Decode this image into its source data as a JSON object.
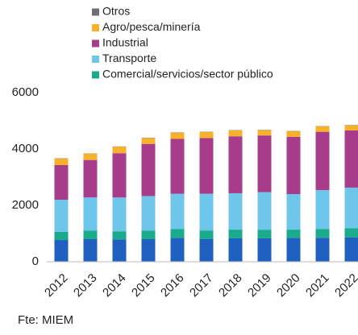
{
  "chart_data": {
    "type": "stacked_bar",
    "categories": [
      "2012",
      "2013",
      "2014",
      "2015",
      "2016",
      "2017",
      "2018",
      "2019",
      "2020",
      "2021",
      "2022"
    ],
    "series": [
      {
        "name": null,
        "color": "#1f5fbf",
        "values": [
          770,
          800,
          790,
          800,
          850,
          810,
          830,
          830,
          850,
          850,
          860
        ]
      },
      {
        "name": "Comercial/servicios/sector público",
        "color": "#1aaa8c",
        "values": [
          290,
          300,
          290,
          300,
          310,
          300,
          310,
          300,
          290,
          310,
          330
        ]
      },
      {
        "name": "Transporte",
        "color": "#6ec6ea",
        "values": [
          1140,
          1180,
          1200,
          1230,
          1250,
          1300,
          1290,
          1340,
          1260,
          1380,
          1440
        ]
      },
      {
        "name": "Industrial",
        "color": "#a63c8a",
        "values": [
          1230,
          1330,
          1570,
          1850,
          1950,
          1980,
          2020,
          2010,
          2030,
          2070,
          2030
        ]
      },
      {
        "name": "Agro/pesca/minería",
        "color": "#f7b22a",
        "values": [
          230,
          220,
          230,
          210,
          220,
          210,
          210,
          190,
          200,
          190,
          180
        ]
      },
      {
        "name": "Otros",
        "color": "#6b6f76",
        "values": [
          10,
          10,
          10,
          10,
          10,
          10,
          10,
          10,
          10,
          10,
          10
        ]
      }
    ],
    "ylim": [
      0,
      6000
    ],
    "yticks": [
      0,
      2000,
      4000,
      6000
    ],
    "source": "Fte: MIEM"
  }
}
